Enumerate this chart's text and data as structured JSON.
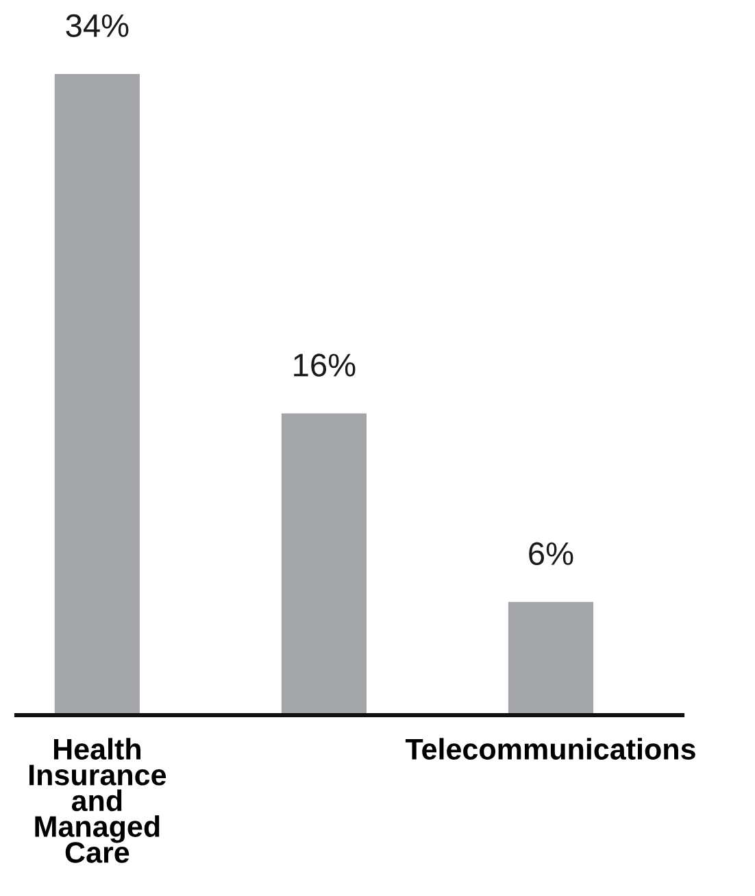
{
  "chart_data": {
    "type": "bar",
    "categories": [
      "Health\nInsurance\nand\nManaged\nCare",
      null,
      "Telecommunications"
    ],
    "values": [
      34,
      16,
      6
    ],
    "value_labels": [
      "34%",
      "16%",
      "6%"
    ],
    "color": "#a4a5a9"
  }
}
